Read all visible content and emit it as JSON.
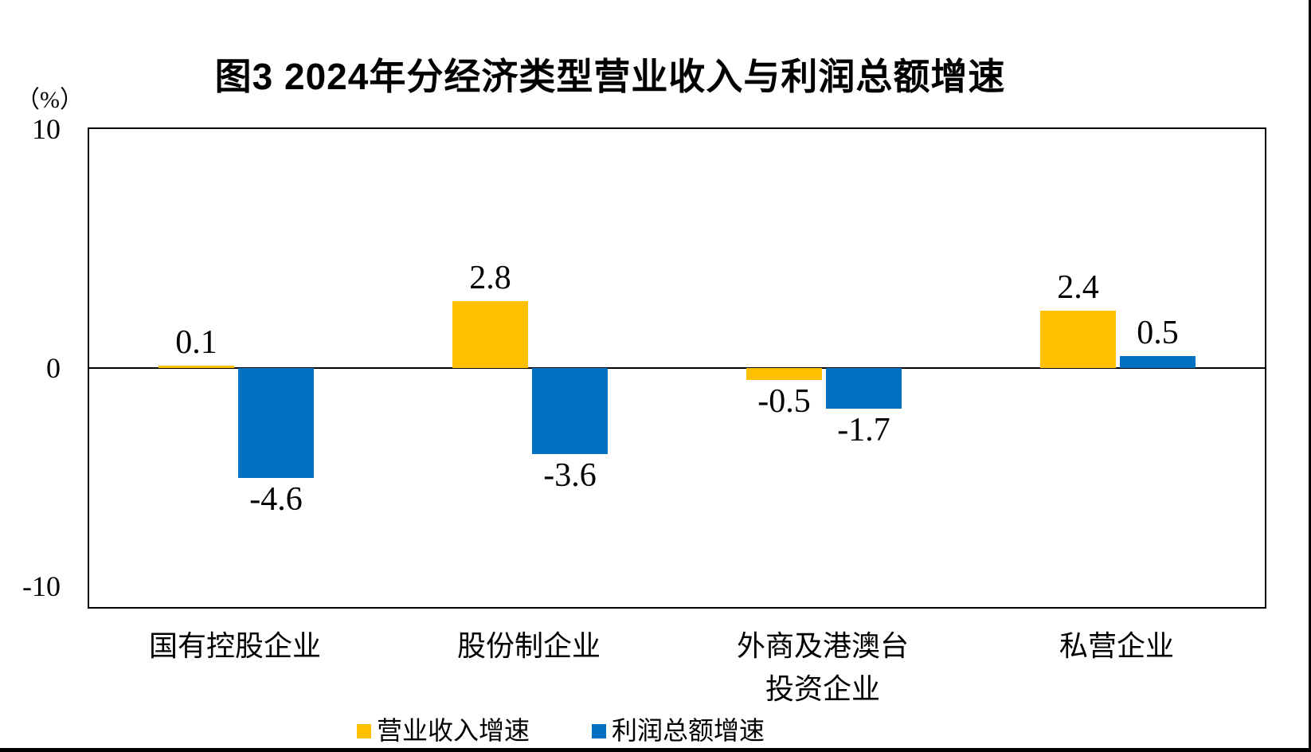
{
  "title": "图3 2024年分经济类型营业收入与利润总额增速",
  "chart_data": {
    "type": "bar",
    "title": "图3 2024年分经济类型营业收入与利润总额增速",
    "unit_label": "（%）",
    "categories": [
      "国有控股企业",
      "股份制企业",
      "外商及港澳台\n投资企业",
      "私营企业"
    ],
    "series": [
      {
        "name": "营业收入增速",
        "color": "#FFC000",
        "values": [
          0.1,
          2.8,
          -0.5,
          2.4
        ]
      },
      {
        "name": "利润总额增速",
        "color": "#0070C0",
        "values": [
          -4.6,
          -3.6,
          -1.7,
          0.5
        ]
      }
    ],
    "ylim": [
      -10,
      10
    ],
    "yticks": [
      10,
      0,
      -10
    ],
    "grid": false,
    "legend_position": "bottom",
    "value_labels": true,
    "axis_color": "#000000"
  }
}
